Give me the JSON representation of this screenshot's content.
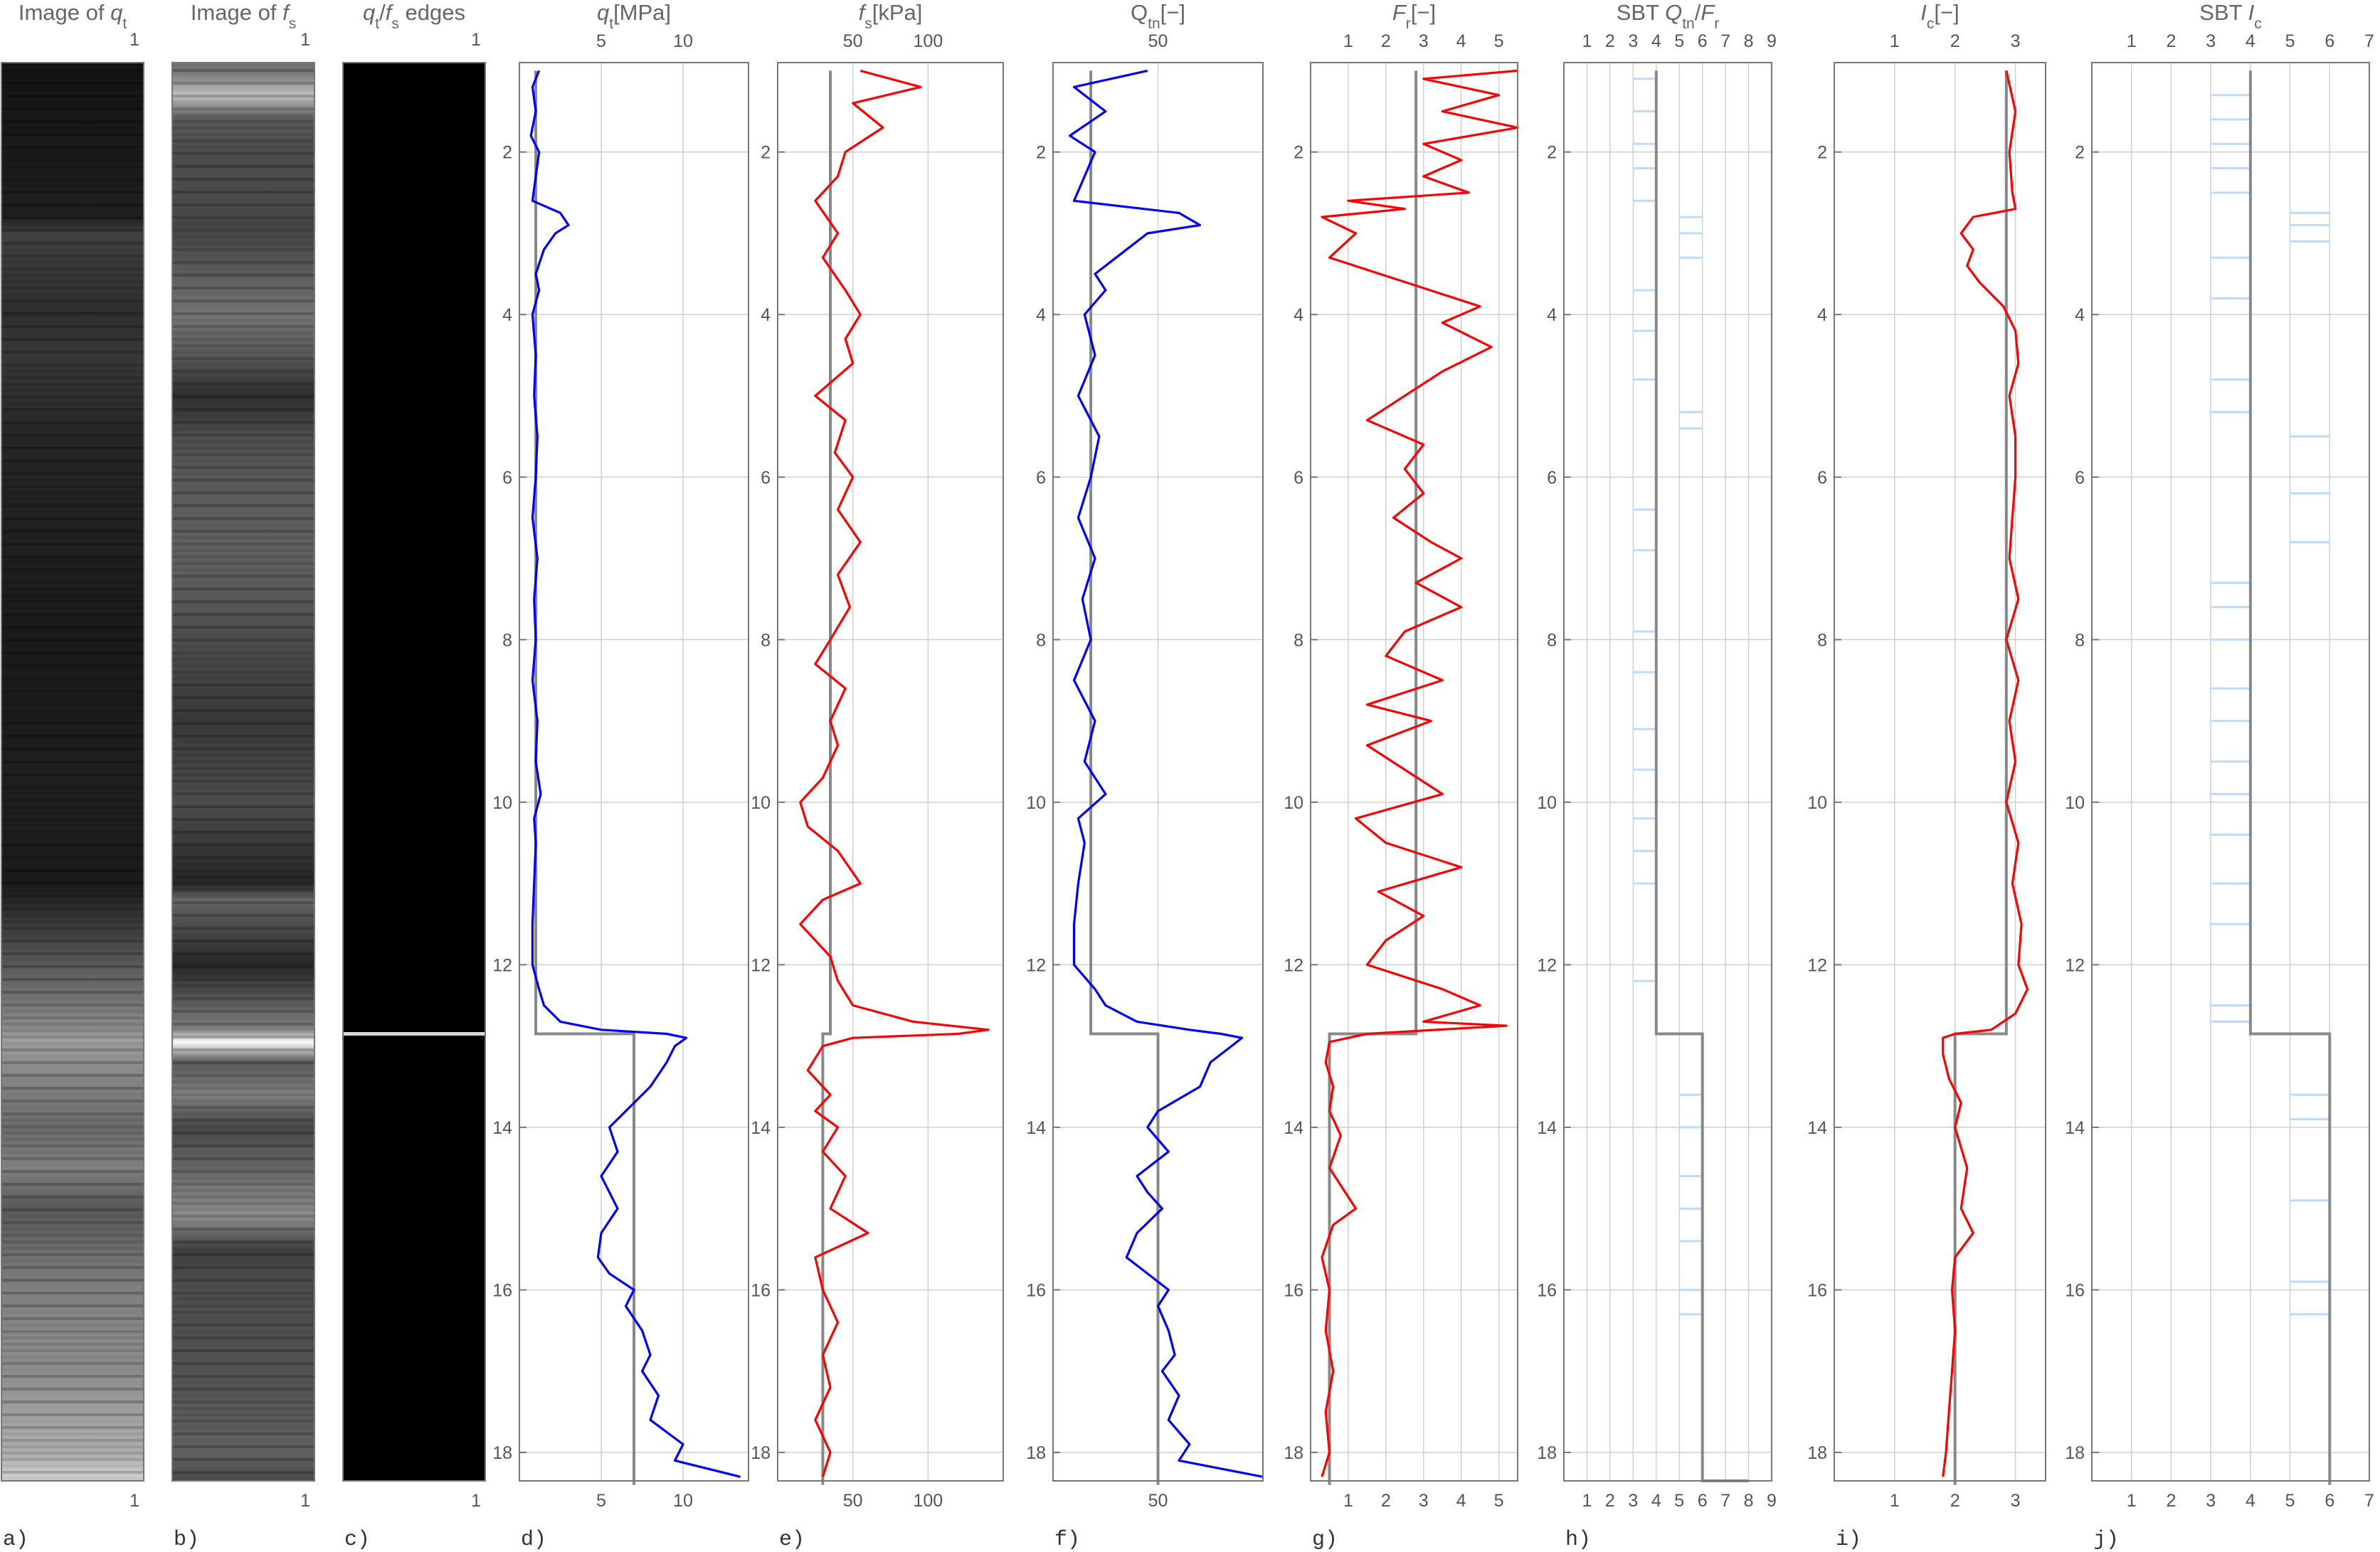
{
  "chart_data": [
    {
      "id": "a",
      "type": "heatmap",
      "panel_label": "a)",
      "title": "Image of q_t",
      "title_parts": [
        [
          "Image of ",
          ""
        ],
        [
          "q",
          "i"
        ],
        [
          "t",
          "sub"
        ]
      ],
      "top_tick": "1",
      "bottom_tick": "1",
      "intensity": {
        "depth": [
          1.0,
          2.8,
          3.0,
          4.0,
          4.5,
          5.5,
          6.5,
          8.0,
          10.0,
          11.0,
          12.8,
          12.9,
          13.5,
          14.0,
          14.5,
          15.0,
          15.5,
          16.0,
          17.0,
          17.5,
          18.0,
          18.3
        ],
        "value": [
          0.08,
          0.12,
          0.25,
          0.18,
          0.22,
          0.15,
          0.13,
          0.1,
          0.12,
          0.1,
          0.55,
          0.62,
          0.5,
          0.42,
          0.5,
          0.35,
          0.42,
          0.5,
          0.55,
          0.62,
          0.68,
          0.8
        ]
      }
    },
    {
      "id": "b",
      "type": "heatmap",
      "panel_label": "b)",
      "title": "Image of f_s",
      "title_parts": [
        [
          "Image of ",
          ""
        ],
        [
          "f",
          "i"
        ],
        [
          "s",
          "sub"
        ]
      ],
      "top_tick": "1",
      "bottom_tick": "1",
      "intensity": {
        "depth": [
          1.0,
          1.3,
          1.6,
          2.0,
          3.0,
          4.0,
          4.5,
          5.0,
          5.5,
          6.0,
          7.0,
          8.0,
          9.0,
          10.0,
          11.0,
          11.2,
          12.0,
          12.8,
          12.95,
          13.2,
          13.6,
          14.0,
          14.5,
          15.1,
          15.5,
          16.0,
          17.0,
          18.0,
          18.3
        ],
        "value": [
          0.45,
          0.75,
          0.35,
          0.3,
          0.28,
          0.45,
          0.35,
          0.18,
          0.3,
          0.35,
          0.38,
          0.3,
          0.22,
          0.3,
          0.15,
          0.4,
          0.15,
          0.5,
          0.98,
          0.35,
          0.5,
          0.28,
          0.4,
          0.55,
          0.25,
          0.3,
          0.32,
          0.38,
          0.3
        ]
      }
    },
    {
      "id": "c",
      "type": "heatmap",
      "panel_label": "c)",
      "title": "q_t/f_s edges",
      "title_parts": [
        [
          "q",
          "i"
        ],
        [
          "t",
          "sub"
        ],
        [
          "/",
          ""
        ],
        [
          "f",
          "i"
        ],
        [
          "s",
          "sub"
        ],
        [
          " edges",
          ""
        ]
      ],
      "top_tick": "1",
      "bottom_tick": "1",
      "edges": [
        12.85
      ]
    },
    {
      "id": "d",
      "type": "line",
      "panel_label": "d)",
      "title": "q_t [MPa]",
      "title_parts": [
        [
          "q",
          "i"
        ],
        [
          "t",
          "sub"
        ],
        [
          "[MPa]",
          ""
        ]
      ],
      "xlim": [
        0,
        14
      ],
      "xticks": [
        5,
        10
      ],
      "color": "#0000ff",
      "series": {
        "depth": [
          1.0,
          1.2,
          1.5,
          1.8,
          2.0,
          2.3,
          2.6,
          2.75,
          2.9,
          3.0,
          3.2,
          3.5,
          3.7,
          4.0,
          4.5,
          5.0,
          5.5,
          6.0,
          6.5,
          7.0,
          7.5,
          8.0,
          8.5,
          9.0,
          9.5,
          9.9,
          10.2,
          10.5,
          11.0,
          11.5,
          12.0,
          12.3,
          12.5,
          12.7,
          12.8,
          12.85,
          12.9,
          13.0,
          13.2,
          13.5,
          13.8,
          14.0,
          14.3,
          14.6,
          14.8,
          15.0,
          15.3,
          15.6,
          15.8,
          16.0,
          16.2,
          16.5,
          16.8,
          17.0,
          17.3,
          17.6,
          17.9,
          18.1,
          18.3
        ],
        "value": [
          1.2,
          0.8,
          1.0,
          0.7,
          1.2,
          1.0,
          0.8,
          2.5,
          3.0,
          2.2,
          1.5,
          1.0,
          1.2,
          0.8,
          1.0,
          0.9,
          1.1,
          1.0,
          0.8,
          1.1,
          0.9,
          1.0,
          0.8,
          1.1,
          1.0,
          1.3,
          0.9,
          1.0,
          0.9,
          0.8,
          0.8,
          1.2,
          1.5,
          2.5,
          5.0,
          9.0,
          10.2,
          9.5,
          9.0,
          8.0,
          6.5,
          5.5,
          6.0,
          5.0,
          5.5,
          6.0,
          5.0,
          4.8,
          5.5,
          7.0,
          6.5,
          7.5,
          8.0,
          7.5,
          8.5,
          8.0,
          10.0,
          9.5,
          13.5
        ]
      },
      "reference": {
        "depth": [
          1.0,
          12.85,
          12.85,
          18.4
        ],
        "value": [
          1.0,
          1.0,
          7.0,
          7.0
        ]
      }
    },
    {
      "id": "e",
      "type": "line",
      "panel_label": "e)",
      "title": "f_s [kPa]",
      "title_parts": [
        [
          "f",
          "i"
        ],
        [
          "s",
          "sub"
        ],
        [
          "[kPa]",
          ""
        ]
      ],
      "xlim": [
        0,
        150
      ],
      "xticks": [
        50,
        100
      ],
      "color": "#ff0000",
      "series": {
        "depth": [
          1.0,
          1.2,
          1.4,
          1.7,
          2.0,
          2.3,
          2.6,
          3.0,
          3.3,
          3.7,
          4.0,
          4.3,
          4.6,
          5.0,
          5.3,
          5.7,
          6.0,
          6.4,
          6.8,
          7.2,
          7.6,
          8.0,
          8.3,
          8.6,
          9.0,
          9.3,
          9.7,
          10.0,
          10.3,
          10.6,
          11.0,
          11.2,
          11.5,
          11.9,
          12.2,
          12.5,
          12.7,
          12.8,
          12.85,
          12.9,
          13.0,
          13.3,
          13.6,
          13.8,
          14.0,
          14.3,
          14.6,
          15.0,
          15.3,
          15.6,
          16.0,
          16.4,
          16.8,
          17.2,
          17.6,
          18.0,
          18.3
        ],
        "value": [
          55,
          95,
          50,
          70,
          45,
          40,
          25,
          40,
          30,
          45,
          55,
          45,
          50,
          25,
          45,
          38,
          50,
          40,
          55,
          40,
          48,
          35,
          25,
          45,
          35,
          40,
          30,
          15,
          20,
          40,
          55,
          30,
          15,
          35,
          40,
          50,
          90,
          140,
          120,
          50,
          30,
          20,
          35,
          25,
          40,
          30,
          45,
          35,
          60,
          25,
          30,
          40,
          30,
          35,
          25,
          35,
          30
        ]
      },
      "reference": {
        "depth": [
          1.0,
          12.85,
          12.85,
          18.4
        ],
        "value": [
          35,
          35,
          30,
          30
        ]
      }
    },
    {
      "id": "f",
      "type": "line",
      "panel_label": "f)",
      "title": "Q_tn [-]",
      "title_parts": [
        [
          "Q",
          ""
        ],
        [
          "tn",
          "sub"
        ],
        [
          "[−]",
          ""
        ]
      ],
      "xlim": [
        0,
        100
      ],
      "xticks": [
        50
      ],
      "color": "#0000ff",
      "series": {
        "depth": [
          1.0,
          1.2,
          1.5,
          1.8,
          2.0,
          2.3,
          2.6,
          2.75,
          2.9,
          3.0,
          3.2,
          3.5,
          3.7,
          4.0,
          4.5,
          5.0,
          5.5,
          6.0,
          6.5,
          7.0,
          7.5,
          8.0,
          8.5,
          9.0,
          9.5,
          9.9,
          10.2,
          10.5,
          11.0,
          11.5,
          12.0,
          12.3,
          12.5,
          12.7,
          12.8,
          12.85,
          12.9,
          13.0,
          13.2,
          13.5,
          13.8,
          14.0,
          14.3,
          14.6,
          14.8,
          15.0,
          15.3,
          15.6,
          15.8,
          16.0,
          16.2,
          16.5,
          16.8,
          17.0,
          17.3,
          17.6,
          17.9,
          18.1,
          18.3
        ],
        "value": [
          45,
          10,
          25,
          8,
          20,
          15,
          10,
          60,
          70,
          45,
          35,
          20,
          25,
          15,
          20,
          12,
          22,
          18,
          12,
          20,
          14,
          18,
          10,
          20,
          15,
          25,
          12,
          15,
          12,
          10,
          10,
          20,
          25,
          40,
          65,
          80,
          90,
          85,
          75,
          70,
          50,
          45,
          55,
          40,
          45,
          52,
          40,
          35,
          45,
          55,
          50,
          55,
          58,
          52,
          60,
          55,
          65,
          60,
          100
        ]
      },
      "reference": {
        "depth": [
          1.0,
          12.85,
          12.85,
          18.4
        ],
        "value": [
          18,
          18,
          50,
          50
        ]
      }
    },
    {
      "id": "g",
      "type": "line",
      "panel_label": "g)",
      "title": "F_r [-]",
      "title_parts": [
        [
          "F",
          "i"
        ],
        [
          "r",
          "sub"
        ],
        [
          "[−]",
          ""
        ]
      ],
      "xlim": [
        0,
        5.5
      ],
      "xticks": [
        1,
        2,
        3,
        4,
        5
      ],
      "color": "#ff0000",
      "series": {
        "depth": [
          1.0,
          1.1,
          1.3,
          1.5,
          1.7,
          1.9,
          2.1,
          2.3,
          2.5,
          2.6,
          2.7,
          2.8,
          3.0,
          3.3,
          3.6,
          3.9,
          4.1,
          4.4,
          4.7,
          5.0,
          5.3,
          5.6,
          5.9,
          6.2,
          6.5,
          6.8,
          7.0,
          7.3,
          7.6,
          7.9,
          8.2,
          8.5,
          8.8,
          9.0,
          9.3,
          9.6,
          9.9,
          10.2,
          10.5,
          10.8,
          11.1,
          11.4,
          11.7,
          12.0,
          12.3,
          12.5,
          12.7,
          12.75,
          12.85,
          12.95,
          13.2,
          13.5,
          13.8,
          14.1,
          14.5,
          15.0,
          15.2,
          15.6,
          16.0,
          16.5,
          17.0,
          17.5,
          18.0,
          18.3
        ],
        "value": [
          5.5,
          3.0,
          5.0,
          3.5,
          5.5,
          3.0,
          4.0,
          3.0,
          4.2,
          1.0,
          2.5,
          0.3,
          1.2,
          0.5,
          2.5,
          4.5,
          3.5,
          4.8,
          3.5,
          2.5,
          1.5,
          3.0,
          2.5,
          3.0,
          2.2,
          3.2,
          4.0,
          2.8,
          4.0,
          2.5,
          2.0,
          3.5,
          1.5,
          3.2,
          1.5,
          2.5,
          3.5,
          1.2,
          2.0,
          4.0,
          1.8,
          3.0,
          2.0,
          1.5,
          3.5,
          4.5,
          3.0,
          5.2,
          1.5,
          0.5,
          0.4,
          0.6,
          0.5,
          0.8,
          0.5,
          1.2,
          0.6,
          0.3,
          0.5,
          0.4,
          0.6,
          0.4,
          0.5,
          0.3
        ]
      },
      "reference": {
        "depth": [
          1.0,
          12.85,
          12.85,
          18.4
        ],
        "value": [
          2.8,
          2.8,
          0.5,
          0.5
        ]
      }
    },
    {
      "id": "h",
      "type": "line",
      "panel_label": "h)",
      "title": "SBT Q_tn/F_r",
      "title_parts": [
        [
          "SBT ",
          ""
        ],
        [
          "Q",
          "i"
        ],
        [
          "tn",
          "sub"
        ],
        [
          "/",
          ""
        ],
        [
          "F",
          "i"
        ],
        [
          "r",
          "sub"
        ]
      ],
      "xlim": [
        0,
        9
      ],
      "xticks": [
        1,
        2,
        3,
        4,
        5,
        6,
        7,
        8,
        9
      ],
      "vgrid": [
        1,
        2,
        3,
        4,
        5,
        6,
        7,
        8,
        9
      ],
      "step": {
        "depth": [
          1.0,
          12.85,
          12.85,
          18.35,
          18.35
        ],
        "value": [
          4,
          4,
          6,
          6,
          8
        ]
      },
      "zones": {
        "depth": [
          1.1,
          1.5,
          1.9,
          2.2,
          2.6,
          2.8,
          3.0,
          3.3,
          3.7,
          4.2,
          4.8,
          5.2,
          5.4,
          6.4,
          6.9,
          7.9,
          8.4,
          9.1,
          9.6,
          10.2,
          10.6,
          11.0,
          12.2,
          13.6,
          14.0,
          14.6,
          15.0,
          15.4,
          16.0,
          16.3
        ],
        "value": [
          3,
          3,
          3,
          3,
          3,
          5,
          5,
          5,
          3,
          3,
          3,
          5,
          5,
          3,
          3,
          3,
          3,
          3,
          3,
          3,
          3,
          3,
          3,
          5,
          5,
          5,
          5,
          5,
          5,
          5
        ]
      }
    },
    {
      "id": "i",
      "type": "line",
      "panel_label": "i)",
      "title": "I_c [-]",
      "title_parts": [
        [
          "I",
          "i"
        ],
        [
          "c",
          "sub"
        ],
        [
          "[−]",
          ""
        ]
      ],
      "xlim": [
        0,
        3.5
      ],
      "xticks": [
        1,
        2,
        3
      ],
      "color": "#ff0000",
      "series": {
        "depth": [
          1.0,
          1.5,
          2.0,
          2.5,
          2.7,
          2.8,
          3.0,
          3.2,
          3.4,
          3.6,
          3.9,
          4.2,
          4.6,
          5.0,
          5.5,
          6.0,
          6.5,
          7.0,
          7.5,
          8.0,
          8.5,
          9.0,
          9.5,
          10.0,
          10.5,
          11.0,
          11.5,
          12.0,
          12.3,
          12.6,
          12.8,
          12.85,
          12.9,
          13.1,
          13.4,
          13.7,
          14.0,
          14.5,
          15.0,
          15.3,
          15.6,
          16.0,
          16.5,
          17.0,
          17.5,
          18.0,
          18.3
        ],
        "value": [
          2.85,
          3.0,
          2.9,
          2.95,
          3.0,
          2.3,
          2.1,
          2.3,
          2.2,
          2.4,
          2.8,
          3.0,
          3.05,
          2.9,
          3.0,
          3.0,
          2.95,
          2.9,
          3.05,
          2.85,
          3.05,
          2.9,
          3.0,
          2.85,
          3.05,
          2.95,
          3.1,
          3.05,
          3.2,
          3.0,
          2.6,
          2.0,
          1.8,
          1.8,
          1.9,
          2.1,
          2.0,
          2.2,
          2.1,
          2.3,
          2.0,
          1.95,
          2.0,
          1.95,
          1.9,
          1.85,
          1.8
        ]
      },
      "reference": {
        "depth": [
          1.0,
          12.85,
          12.85,
          18.4
        ],
        "value": [
          2.85,
          2.85,
          2.0,
          2.0
        ]
      }
    },
    {
      "id": "j",
      "type": "line",
      "panel_label": "j)",
      "title": "SBT I_c",
      "title_parts": [
        [
          "SBT ",
          ""
        ],
        [
          "I",
          "i"
        ],
        [
          "c",
          "sub"
        ]
      ],
      "xlim": [
        0,
        7
      ],
      "xticks": [
        1,
        2,
        3,
        4,
        5,
        6,
        7
      ],
      "step": {
        "depth": [
          1.0,
          12.85,
          12.85,
          18.4
        ],
        "value": [
          4,
          4,
          6,
          6
        ]
      },
      "zones": {
        "depth": [
          1.3,
          1.6,
          1.9,
          2.2,
          2.5,
          2.75,
          2.9,
          3.1,
          3.3,
          3.8,
          4.8,
          5.2,
          5.5,
          6.2,
          6.8,
          7.3,
          7.6,
          8.0,
          8.6,
          9.0,
          9.5,
          9.9,
          10.4,
          11.0,
          11.5,
          12.5,
          12.7,
          13.6,
          13.9,
          14.9,
          15.9,
          16.3
        ],
        "value": [
          3,
          3,
          3,
          3,
          3,
          5,
          5,
          5,
          3,
          3,
          3,
          3,
          5,
          5,
          5,
          3,
          3,
          3,
          3,
          3,
          3,
          3,
          3,
          3,
          3,
          3,
          3,
          5,
          5,
          5,
          5,
          5
        ]
      }
    }
  ],
  "depth_axis": {
    "ylim": [
      0.9,
      18.35
    ],
    "ticks": [
      2,
      4,
      6,
      8,
      10,
      12,
      14,
      16,
      18
    ],
    "reversed": true
  }
}
